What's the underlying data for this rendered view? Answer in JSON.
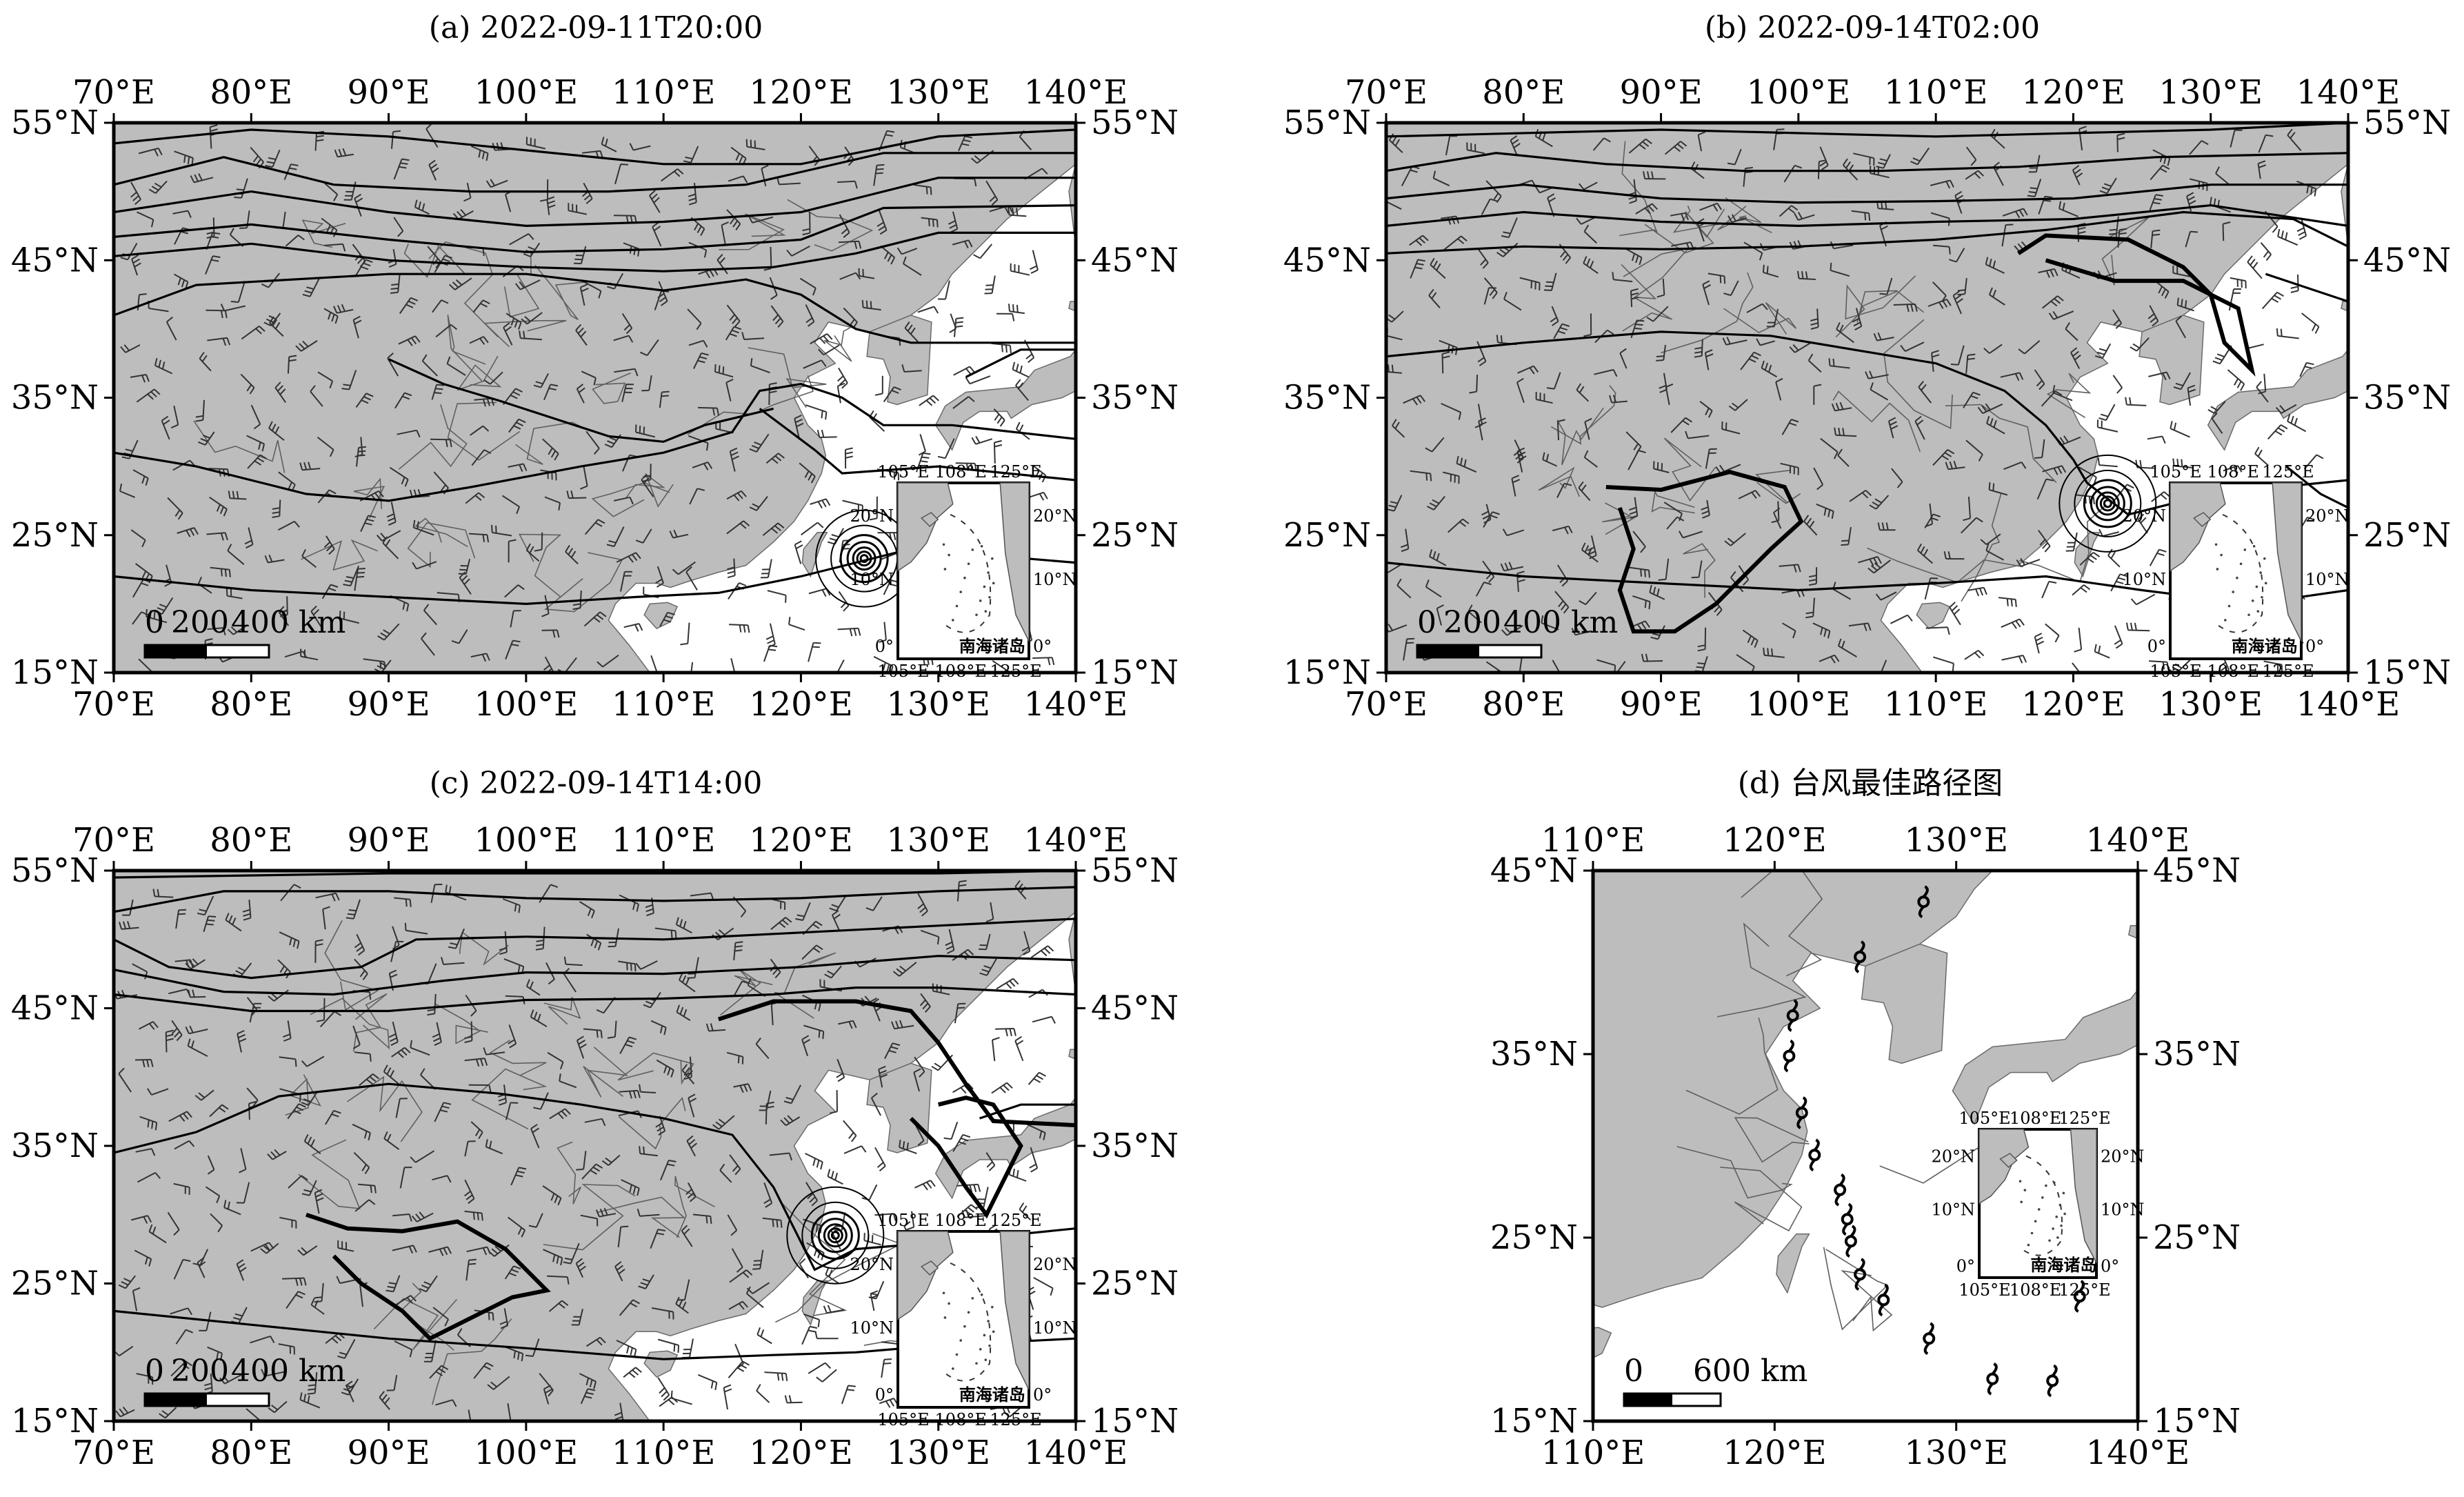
{
  "panels": [
    {
      "id": "a",
      "title": "(a) 2022-09-11T20:00",
      "lon_ticks": [
        "70°E",
        "80°E",
        "90°E",
        "100°E",
        "110°E",
        "120°E",
        "130°E",
        "140°E"
      ],
      "lat_ticks": [
        "15°N",
        "25°N",
        "35°N",
        "45°N",
        "55°N"
      ],
      "extent": {
        "lon": [
          70,
          140
        ],
        "lat": [
          15,
          55
        ]
      },
      "scale_bar": {
        "labels": [
          "0",
          "200",
          "400 km"
        ]
      },
      "inset": {
        "top_labels": [
          "105°E",
          "108°E",
          "125°E"
        ],
        "bottom_labels": [
          "105°E",
          "108°E",
          "125°E"
        ],
        "left_labels": [
          "20°N",
          "10°N",
          "0°"
        ],
        "right_labels": [
          "20°N",
          "10°N",
          "0°"
        ],
        "caption": "南海诸岛"
      },
      "typhoon_center": {
        "lon": 124.6,
        "lat": 23.3
      }
    },
    {
      "id": "b",
      "title": "(b) 2022-09-14T02:00",
      "lon_ticks": [
        "70°E",
        "80°E",
        "90°E",
        "100°E",
        "110°E",
        "120°E",
        "130°E",
        "140°E"
      ],
      "lat_ticks": [
        "15°N",
        "25°N",
        "35°N",
        "45°N",
        "55°N"
      ],
      "extent": {
        "lon": [
          70,
          140
        ],
        "lat": [
          15,
          55
        ]
      },
      "scale_bar": {
        "labels": [
          "0",
          "200",
          "400 km"
        ]
      },
      "inset": {
        "top_labels": [
          "105°E",
          "108°E",
          "125°E"
        ],
        "bottom_labels": [
          "105°E",
          "108°E",
          "125°E"
        ],
        "left_labels": [
          "20°N",
          "10°N",
          "0°"
        ],
        "right_labels": [
          "20°N",
          "10°N",
          "0°"
        ],
        "caption": "南海诸岛"
      },
      "typhoon_center": {
        "lon": 122.5,
        "lat": 27.3
      }
    },
    {
      "id": "c",
      "title": "(c) 2022-09-14T14:00",
      "lon_ticks": [
        "70°E",
        "80°E",
        "90°E",
        "100°E",
        "110°E",
        "120°E",
        "130°E",
        "140°E"
      ],
      "lat_ticks": [
        "15°N",
        "25°N",
        "35°N",
        "45°N",
        "55°N"
      ],
      "extent": {
        "lon": [
          70,
          140
        ],
        "lat": [
          15,
          55
        ]
      },
      "scale_bar": {
        "labels": [
          "0",
          "200",
          "400 km"
        ]
      },
      "inset": {
        "top_labels": [
          "105°E",
          "108°E",
          "125°E"
        ],
        "bottom_labels": [
          "105°E",
          "108°E",
          "125°E"
        ],
        "left_labels": [
          "20°N",
          "10°N",
          "0°"
        ],
        "right_labels": [
          "20°N",
          "10°N",
          "0°"
        ],
        "caption": "南海诸岛"
      },
      "typhoon_center": {
        "lon": 122.5,
        "lat": 28.5
      }
    },
    {
      "id": "d",
      "title": "(d) 台风最佳路径图",
      "lon_ticks": [
        "110°E",
        "120°E",
        "130°E",
        "140°E"
      ],
      "lat_ticks": [
        "15°N",
        "25°N",
        "35°N",
        "45°N"
      ],
      "extent": {
        "lon": [
          110,
          140
        ],
        "lat": [
          15,
          45
        ]
      },
      "scale_bar": {
        "labels": [
          "0",
          "600 km"
        ]
      },
      "inset": {
        "top_labels": [
          "105°E",
          "108°E",
          "125°E"
        ],
        "bottom_labels": [
          "105°E",
          "108°E",
          "125°E"
        ],
        "left_labels": [
          "20°N",
          "10°N",
          "0°"
        ],
        "right_labels": [
          "20°N",
          "10°N",
          "0°"
        ],
        "caption": "南海诸岛"
      },
      "track": [
        {
          "lon": 136.8,
          "lat": 21.8
        },
        {
          "lon": 135.3,
          "lat": 17.2
        },
        {
          "lon": 132.0,
          "lat": 17.3
        },
        {
          "lon": 128.5,
          "lat": 19.5
        },
        {
          "lon": 126.0,
          "lat": 21.6
        },
        {
          "lon": 124.7,
          "lat": 23.0
        },
        {
          "lon": 124.2,
          "lat": 24.8
        },
        {
          "lon": 124.0,
          "lat": 26.0
        },
        {
          "lon": 123.6,
          "lat": 27.6
        },
        {
          "lon": 122.2,
          "lat": 29.5
        },
        {
          "lon": 121.5,
          "lat": 31.8
        },
        {
          "lon": 120.8,
          "lat": 34.9
        },
        {
          "lon": 121.0,
          "lat": 37.1
        },
        {
          "lon": 124.7,
          "lat": 40.3
        },
        {
          "lon": 128.2,
          "lat": 43.3
        }
      ]
    }
  ],
  "colors": {
    "land": "#bdbdbd",
    "ocean": "#ffffff",
    "line": "#000000",
    "border": "#5f5f5f"
  }
}
